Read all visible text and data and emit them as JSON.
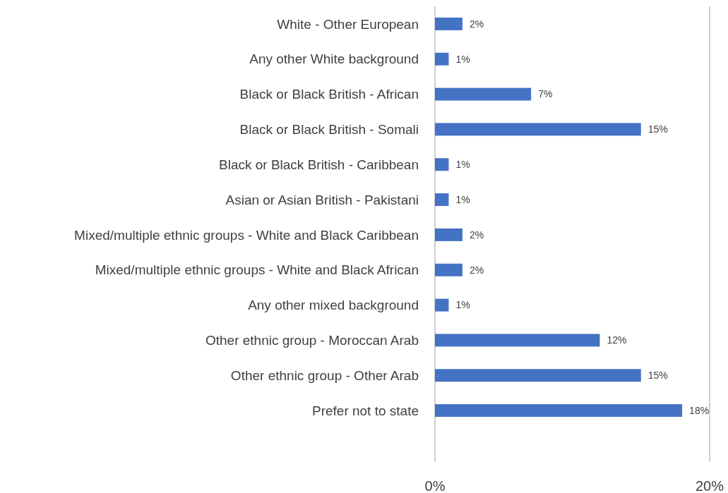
{
  "chart_data": {
    "type": "bar",
    "orientation": "horizontal",
    "categories": [
      "White - Other European",
      "Any other White background",
      "Black or Black British - African",
      "Black or Black British - Somali",
      "Black or Black British - Caribbean",
      "Asian or Asian British - Pakistani",
      "Mixed/multiple ethnic groups - White and Black Caribbean",
      "Mixed/multiple ethnic groups - White and Black African",
      "Any other mixed background",
      "Other ethnic group - Moroccan Arab",
      "Other ethnic group - Other Arab",
      "Prefer not to state"
    ],
    "values": [
      2,
      1,
      7,
      15,
      1,
      1,
      2,
      2,
      1,
      12,
      15,
      18
    ],
    "value_labels": [
      "2%",
      "1%",
      "7%",
      "15%",
      "1%",
      "1%",
      "2%",
      "2%",
      "1%",
      "12%",
      "15%",
      "18%"
    ],
    "color": "#4472c4",
    "xlim": [
      0,
      20
    ],
    "xticks": [
      {
        "value": 0,
        "label": "0%"
      },
      {
        "value": 20,
        "label": "20%"
      }
    ]
  }
}
